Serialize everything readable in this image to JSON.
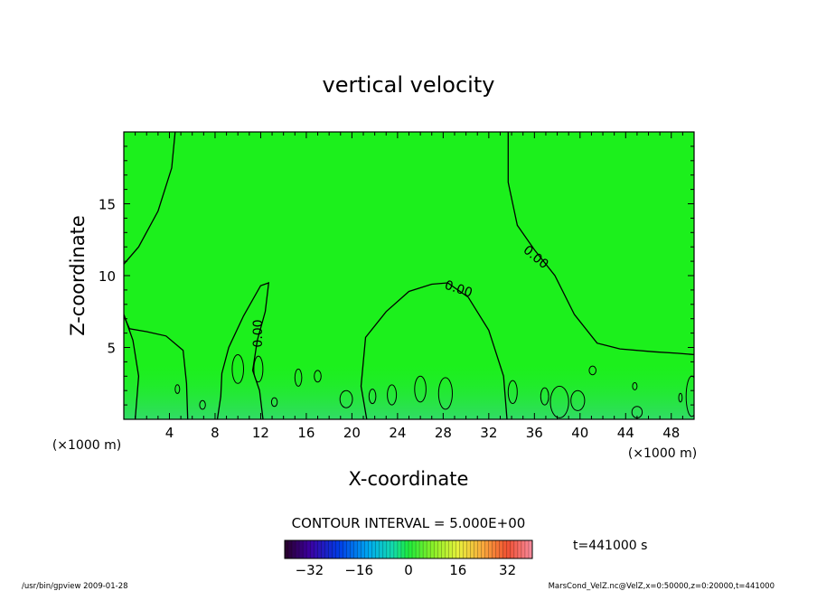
{
  "chart_data": {
    "type": "heatmap",
    "title": "vertical velocity",
    "xlabel": "X-coordinate",
    "ylabel": "Z-coordinate",
    "x_unit_left": "(×1000 m)",
    "x_unit_right": "(×1000 m)",
    "xlim": [
      0,
      50
    ],
    "ylim": [
      0,
      20
    ],
    "x_ticks": [
      4,
      8,
      12,
      16,
      20,
      24,
      28,
      32,
      36,
      40,
      44,
      48
    ],
    "x_tick_labels": [
      "4",
      "8",
      "12",
      "16",
      "20",
      "24",
      "28",
      "32",
      "36",
      "40",
      "44",
      "48"
    ],
    "y_ticks": [
      5,
      10,
      15
    ],
    "y_tick_labels": [
      "5",
      "10",
      "15"
    ],
    "contour_labels": [
      "0.00",
      "0.00",
      "0.00"
    ],
    "contour_interval_text": "CONTOUR INTERVAL = 5.000E+00",
    "time_text": "t=441000 s",
    "colorbar": {
      "range": [
        -40,
        40
      ],
      "ticks": [
        -32,
        -16,
        0,
        16,
        32
      ],
      "tick_labels": [
        "−32",
        "−16",
        "0",
        "16",
        "32"
      ]
    },
    "zero_contours": [
      [
        [
          1.0,
          0.0
        ],
        [
          1.3,
          3.0
        ],
        [
          0.8,
          5.5
        ],
        [
          0.0,
          7.3
        ]
      ],
      [
        [
          0.0,
          10.8
        ],
        [
          1.3,
          12.0
        ],
        [
          3.0,
          14.5
        ],
        [
          4.2,
          17.5
        ],
        [
          4.5,
          20.0
        ]
      ],
      [
        [
          0.0,
          7.2
        ],
        [
          0.5,
          6.3
        ],
        [
          2.0,
          6.1
        ],
        [
          3.7,
          5.8
        ],
        [
          5.2,
          4.8
        ],
        [
          5.5,
          2.5
        ],
        [
          5.6,
          0.0
        ]
      ],
      [
        [
          8.2,
          0.0
        ],
        [
          8.5,
          1.6
        ],
        [
          8.6,
          3.2
        ],
        [
          9.2,
          5.0
        ],
        [
          10.5,
          7.2
        ],
        [
          12.0,
          9.3
        ],
        [
          12.7,
          9.5
        ],
        [
          12.4,
          7.5
        ],
        [
          11.7,
          5.5
        ],
        [
          11.3,
          3.4
        ],
        [
          11.9,
          2.0
        ],
        [
          12.2,
          0.0
        ]
      ],
      [
        [
          21.3,
          0.0
        ],
        [
          20.8,
          2.3
        ],
        [
          21.2,
          5.7
        ],
        [
          23.0,
          7.5
        ],
        [
          25.0,
          8.9
        ],
        [
          27.0,
          9.4
        ],
        [
          28.4,
          9.5
        ],
        [
          30.2,
          8.5
        ],
        [
          32.0,
          6.2
        ],
        [
          33.3,
          3.0
        ],
        [
          33.6,
          0.0
        ]
      ],
      [
        [
          33.7,
          20.0
        ],
        [
          33.7,
          16.5
        ],
        [
          34.5,
          13.5
        ],
        [
          36.0,
          11.8
        ],
        [
          37.8,
          10.0
        ],
        [
          39.5,
          7.3
        ],
        [
          41.5,
          5.3
        ],
        [
          43.5,
          4.9
        ],
        [
          46.5,
          4.7
        ],
        [
          48.5,
          4.6
        ],
        [
          50.0,
          4.5
        ]
      ]
    ],
    "small_contours": [
      {
        "cx": 19.5,
        "cy": 1.4,
        "rx": 0.55,
        "ry": 0.6
      },
      {
        "cx": 39.8,
        "cy": 1.3,
        "rx": 0.6,
        "ry": 0.7
      },
      {
        "cx": 11.8,
        "cy": 3.5,
        "rx": 0.4,
        "ry": 0.9
      },
      {
        "cx": 15.3,
        "cy": 2.9,
        "rx": 0.3,
        "ry": 0.6
      },
      {
        "cx": 17.0,
        "cy": 3.0,
        "rx": 0.3,
        "ry": 0.4
      },
      {
        "cx": 26.0,
        "cy": 2.1,
        "rx": 0.5,
        "ry": 0.9
      },
      {
        "cx": 28.2,
        "cy": 1.8,
        "rx": 0.6,
        "ry": 1.1
      },
      {
        "cx": 38.2,
        "cy": 1.2,
        "rx": 0.8,
        "ry": 1.1
      },
      {
        "cx": 45.0,
        "cy": 0.5,
        "rx": 0.45,
        "ry": 0.4
      },
      {
        "cx": 10.0,
        "cy": 3.5,
        "rx": 0.5,
        "ry": 1.0
      },
      {
        "cx": 6.9,
        "cy": 1.0,
        "rx": 0.25,
        "ry": 0.3
      },
      {
        "cx": 4.7,
        "cy": 2.1,
        "rx": 0.2,
        "ry": 0.3
      },
      {
        "cx": 36.9,
        "cy": 1.6,
        "rx": 0.35,
        "ry": 0.6
      },
      {
        "cx": 41.1,
        "cy": 3.4,
        "rx": 0.3,
        "ry": 0.3
      },
      {
        "cx": 44.8,
        "cy": 2.3,
        "rx": 0.2,
        "ry": 0.25
      },
      {
        "cx": 48.8,
        "cy": 1.5,
        "rx": 0.15,
        "ry": 0.3
      },
      {
        "cx": 23.5,
        "cy": 1.7,
        "rx": 0.4,
        "ry": 0.7
      },
      {
        "cx": 13.2,
        "cy": 1.2,
        "rx": 0.25,
        "ry": 0.3
      },
      {
        "cx": 21.8,
        "cy": 1.6,
        "rx": 0.3,
        "ry": 0.5
      },
      {
        "cx": 34.1,
        "cy": 1.9,
        "rx": 0.4,
        "ry": 0.8
      },
      {
        "cx": 49.8,
        "cy": 1.6,
        "rx": 0.5,
        "ry": 1.4
      }
    ]
  },
  "footer": {
    "left": "/usr/bin/gpview  2009-01-28",
    "right": "MarsCond_VelZ.nc@VelZ,x=0:50000,z=0:20000,t=441000"
  },
  "colors": {
    "field": "#1cf01c",
    "field_low": "#2fd86a",
    "contour": "#000000"
  }
}
